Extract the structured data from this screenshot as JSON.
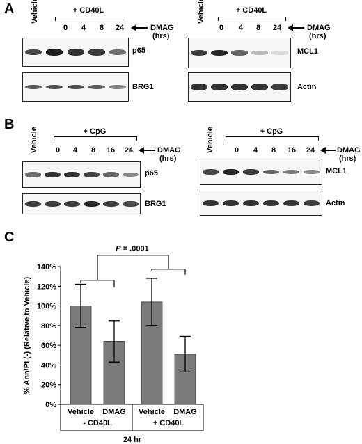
{
  "panels": {
    "A": {
      "letter": "A",
      "left": {
        "vehicle": "Vehicle",
        "treatment": "+ CD40L",
        "times": [
          "0",
          "4",
          "8",
          "24"
        ],
        "dmag": "DMAG",
        "hrs": "(hrs)",
        "protein_top": "p65",
        "protein_bottom": "BRG1",
        "top_intensities": [
          0.75,
          0.95,
          0.85,
          0.8,
          0.55
        ],
        "bottom_intensities": [
          0.65,
          0.7,
          0.7,
          0.65,
          0.45
        ]
      },
      "right": {
        "vehicle": "Vehicle",
        "treatment": "+ CD40L",
        "times": [
          "0",
          "4",
          "8",
          "24"
        ],
        "dmag": "DMAG",
        "hrs": "(hrs)",
        "protein_top": "MCL1",
        "protein_bottom": "Actin",
        "top_intensities": [
          0.8,
          0.9,
          0.6,
          0.2,
          0.04
        ],
        "bottom_intensities": [
          0.85,
          0.85,
          0.85,
          0.85,
          0.8
        ]
      }
    },
    "B": {
      "letter": "B",
      "left": {
        "vehicle": "Vehicle",
        "treatment": "+ CpG",
        "times": [
          "0",
          "4",
          "8",
          "16",
          "24"
        ],
        "dmag": "DMAG",
        "hrs": "(hrs)",
        "protein_top": "p65",
        "protein_bottom": "BRG1",
        "top_intensities": [
          0.55,
          0.85,
          0.85,
          0.75,
          0.6,
          0.45
        ],
        "bottom_intensities": [
          0.8,
          0.8,
          0.8,
          0.9,
          0.8,
          0.75
        ]
      },
      "right": {
        "vehicle": "Vehicle",
        "treatment": "+ CpG",
        "times": [
          "0",
          "4",
          "8",
          "16",
          "24"
        ],
        "dmag": "DMAG",
        "hrs": "(hrs)",
        "protein_top": "MCL1",
        "protein_bottom": "Actin",
        "top_intensities": [
          0.75,
          0.9,
          0.8,
          0.6,
          0.5,
          0.4
        ],
        "bottom_intensities": [
          0.85,
          0.85,
          0.85,
          0.85,
          0.85,
          0.8
        ]
      }
    },
    "C": {
      "letter": "C"
    }
  },
  "chart_data": {
    "type": "bar",
    "categories": [
      "Vehicle",
      "DMAG",
      "Vehicle",
      "DMAG"
    ],
    "groups": [
      "- CD40L",
      "+ CD40L"
    ],
    "group_sublabel": "24 hr",
    "values": [
      100,
      64,
      104,
      51
    ],
    "errors": [
      22,
      21,
      24,
      18
    ],
    "ylabel": "% Ann/PI (-) (Relative to Vehicle)",
    "ylim": [
      0,
      140
    ],
    "yticks": [
      "0%",
      "20%",
      "40%",
      "60%",
      "80%",
      "100%",
      "120%",
      "140%"
    ],
    "annotation": {
      "p_italic": "P",
      "p_rest": " = .0001"
    },
    "grid": false,
    "bar_color": "#7a7a7a"
  }
}
